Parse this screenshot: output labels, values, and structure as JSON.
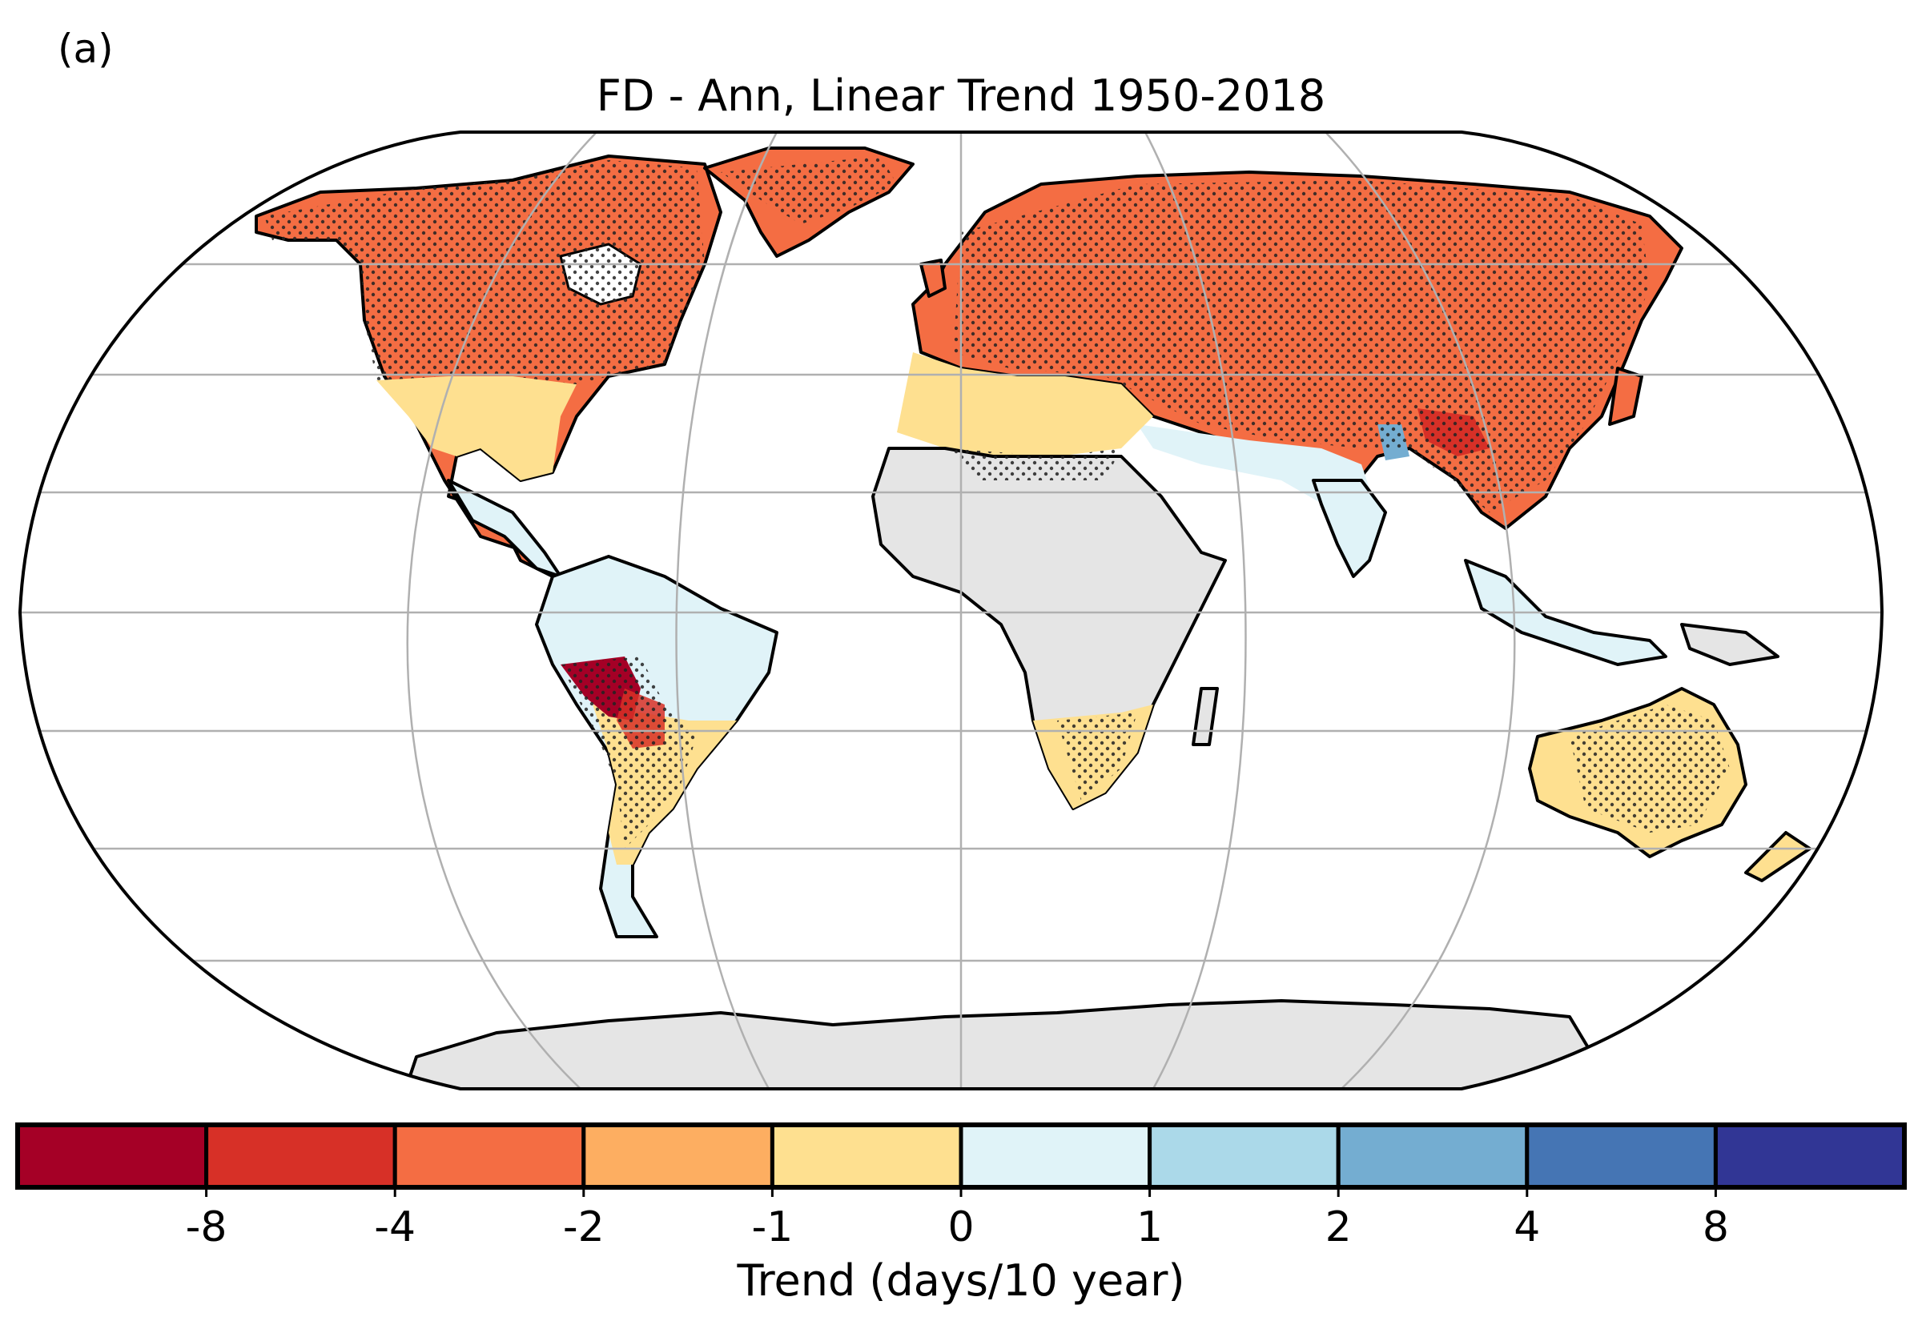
{
  "panel_label": "(a)",
  "title": "FD - Ann, Linear Trend 1950-2018",
  "colorbar": {
    "label": "Trend (days/10 year)",
    "ticks": [
      "-8",
      "-4",
      "-2",
      "-1",
      "0",
      "1",
      "2",
      "4",
      "8"
    ],
    "colors": [
      "#a50026",
      "#d73027",
      "#f46d43",
      "#fdae61",
      "#fee090",
      "#e0f3f8",
      "#abd9e9",
      "#74add1",
      "#4575b4",
      "#313695"
    ]
  },
  "map": {
    "projection": "Robinson",
    "no_data_color": "#e5e5e5",
    "stippling": "dots mark grid cells with significant trend",
    "regions": [
      {
        "name": "north-america",
        "trend_class": "-4 to -2"
      },
      {
        "name": "greenland",
        "trend_class": "-4 to -2"
      },
      {
        "name": "europe-asia",
        "trend_class": "-4 to -2"
      },
      {
        "name": "tibet-hotspot",
        "trend_class": "-8 to -4"
      },
      {
        "name": "indian-subcontinent",
        "trend_class": "0 to 1"
      },
      {
        "name": "south-america-tropics",
        "trend_class": "0 to 1"
      },
      {
        "name": "bolivia-hotspot",
        "trend_class": "< -8"
      },
      {
        "name": "southern-africa",
        "trend_class": "-1 to 0"
      },
      {
        "name": "australia",
        "trend_class": "-1 to 0"
      },
      {
        "name": "sahara-africa",
        "trend_class": "no data"
      },
      {
        "name": "antarctica",
        "trend_class": "no data"
      }
    ]
  }
}
